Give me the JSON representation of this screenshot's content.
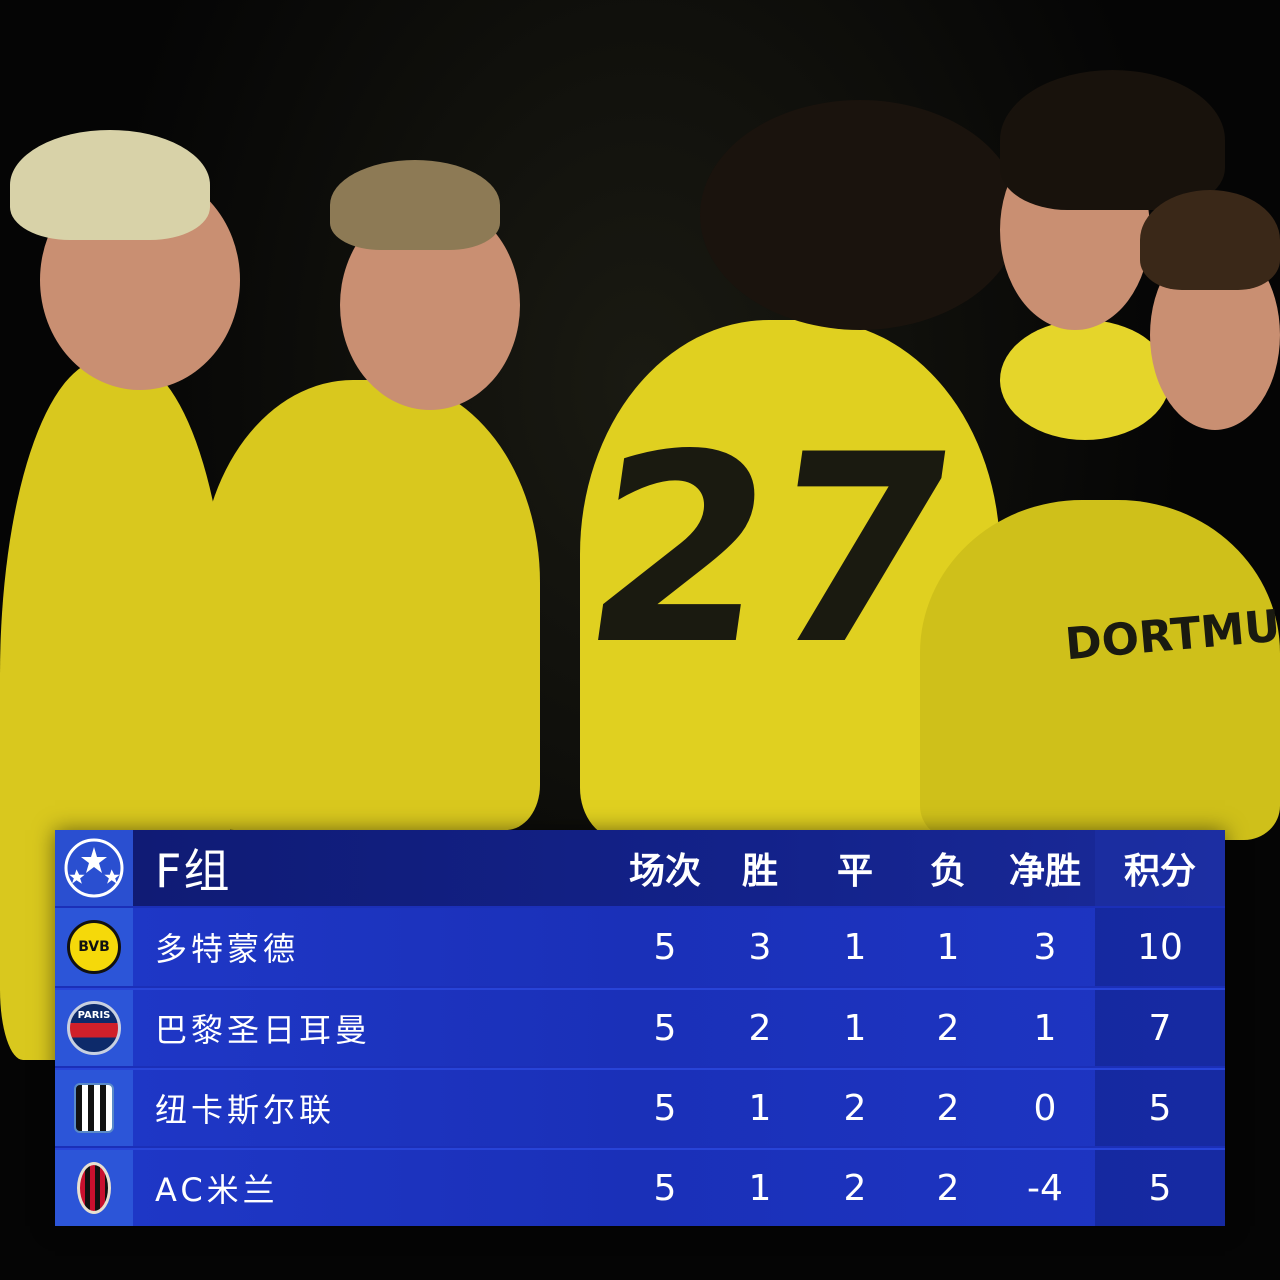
{
  "group_title": "F组",
  "columns": [
    "场次",
    "胜",
    "平",
    "负",
    "净胜",
    "积分"
  ],
  "teams": [
    {
      "name": "多特蒙德",
      "logo": "bvb-crest-icon",
      "logo_text": "BVB",
      "played": "5",
      "won": "3",
      "drawn": "1",
      "lost": "1",
      "gd": "3",
      "pts": "10"
    },
    {
      "name": "巴黎圣日耳曼",
      "logo": "psg-crest-icon",
      "logo_text": "PARIS",
      "played": "5",
      "won": "2",
      "drawn": "1",
      "lost": "2",
      "gd": "1",
      "pts": "7"
    },
    {
      "name": "纽卡斯尔联",
      "logo": "newcastle-crest-icon",
      "played": "5",
      "won": "1",
      "drawn": "2",
      "lost": "2",
      "gd": "0",
      "pts": "5"
    },
    {
      "name": "AC米兰",
      "logo": "ac-milan-crest-icon",
      "played": "5",
      "won": "1",
      "drawn": "2",
      "lost": "2",
      "gd": "-4",
      "pts": "5"
    }
  ],
  "photo_text": {
    "shirt_number": "27",
    "sponsor": "DORTMU"
  },
  "colors": {
    "table_blue": "#1b2fb8",
    "header_navy": "#0f1a72",
    "logo_cell": "#2c55d8",
    "jersey_yellow": "#d9c81e"
  }
}
